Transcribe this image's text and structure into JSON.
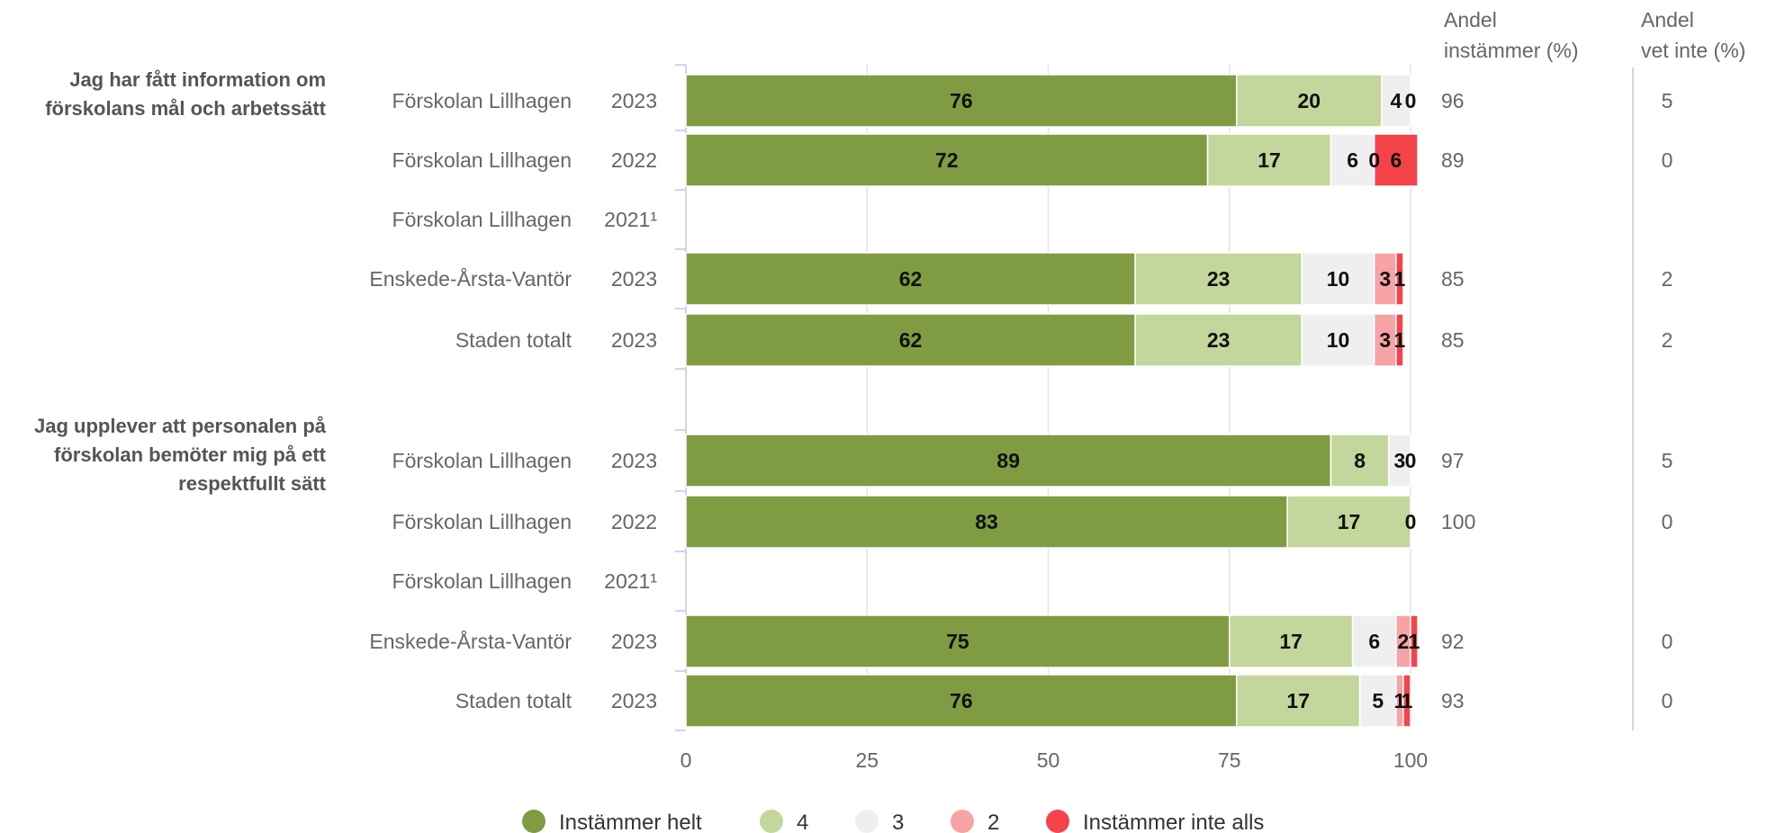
{
  "chart_data": {
    "type": "bar",
    "orientation": "horizontal",
    "stacked": true,
    "xlim": [
      0,
      100
    ],
    "x_ticks": [
      0,
      25,
      50,
      75,
      100
    ],
    "grid": true,
    "legend_position": "bottom",
    "series": [
      {
        "name": "Instämmer helt",
        "color": "#7f9c43"
      },
      {
        "name": "4",
        "color": "#c3d69b"
      },
      {
        "name": "3",
        "color": "#efefef"
      },
      {
        "name": "2",
        "color": "#f7a3a5"
      },
      {
        "name": "Instämmer inte alls",
        "color": "#f5434a"
      }
    ],
    "column_headers": {
      "agree": [
        "Andel",
        "instämmer (%)"
      ],
      "dontknow": [
        "Andel",
        "vet inte (%)"
      ]
    },
    "groups": [
      {
        "question_lines": [
          "Jag har fått information om",
          "förskolans mål och arbetssätt"
        ],
        "rows": [
          {
            "unit": "Förskolan Lillhagen",
            "year": "2023",
            "values": [
              76,
              20,
              4,
              0,
              0
            ],
            "labels": [
              "76",
              "20",
              "4",
              "0",
              ""
            ],
            "agree": "96",
            "dontknow": "5"
          },
          {
            "unit": "Förskolan Lillhagen",
            "year": "2022",
            "values": [
              72,
              17,
              6,
              0,
              6
            ],
            "labels": [
              "72",
              "17",
              "6",
              "0",
              "6"
            ],
            "agree": "89",
            "dontknow": "0"
          },
          {
            "unit": "Förskolan Lillhagen",
            "year": "2021¹",
            "values": null,
            "labels": [],
            "agree": "",
            "dontknow": ""
          },
          {
            "unit": "Enskede-Årsta-Vantör",
            "year": "2023",
            "values": [
              62,
              23,
              10,
              3,
              1
            ],
            "labels": [
              "62",
              "23",
              "10",
              "3",
              "1"
            ],
            "agree": "85",
            "dontknow": "2"
          },
          {
            "unit": "Staden totalt",
            "year": "2023",
            "values": [
              62,
              23,
              10,
              3,
              1
            ],
            "labels": [
              "62",
              "23",
              "10",
              "3",
              "1"
            ],
            "agree": "85",
            "dontknow": "2"
          }
        ]
      },
      {
        "question_lines": [
          "Jag upplever att personalen på",
          "förskolan bemöter mig på ett",
          "respektfullt sätt"
        ],
        "rows": [
          {
            "unit": "Förskolan Lillhagen",
            "year": "2023",
            "values": [
              89,
              8,
              3,
              0,
              0
            ],
            "labels": [
              "89",
              "8",
              "3",
              "0",
              ""
            ],
            "agree": "97",
            "dontknow": "5"
          },
          {
            "unit": "Förskolan Lillhagen",
            "year": "2022",
            "values": [
              83,
              17,
              0,
              0,
              0
            ],
            "labels": [
              "83",
              "17",
              "0",
              "",
              ""
            ],
            "agree": "100",
            "dontknow": "0"
          },
          {
            "unit": "Förskolan Lillhagen",
            "year": "2021¹",
            "values": null,
            "labels": [],
            "agree": "",
            "dontknow": ""
          },
          {
            "unit": "Enskede-Årsta-Vantör",
            "year": "2023",
            "values": [
              75,
              17,
              6,
              2,
              1
            ],
            "labels": [
              "75",
              "17",
              "6",
              "2",
              "1"
            ],
            "agree": "92",
            "dontknow": "0"
          },
          {
            "unit": "Staden totalt",
            "year": "2023",
            "values": [
              76,
              17,
              5,
              1,
              1
            ],
            "labels": [
              "76",
              "17",
              "5",
              "1",
              "1"
            ],
            "agree": "93",
            "dontknow": "0"
          }
        ]
      }
    ]
  }
}
